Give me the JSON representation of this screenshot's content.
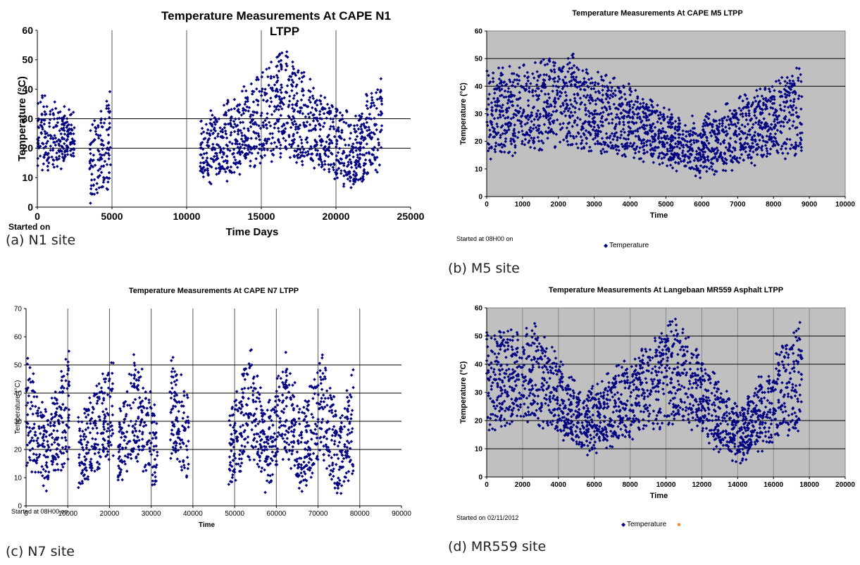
{
  "colors": {
    "series": "#000080",
    "plot_bg": "#c0c0c0",
    "grid": "#000000",
    "vgrid_light": "#8a8a8a",
    "legend_orange": "#f08a24"
  },
  "chart_data": [
    {
      "id": "n1",
      "type": "scatter",
      "title": "Temperature Measurements At CAPE N1 LTPP",
      "title_line1": "Temperature Measurements At CAPE N1",
      "title_line2": "LTPP",
      "xlabel": "Time Days",
      "ylabel": "Temperature (°C)",
      "note": "Started on",
      "caption": "(a) N1 site",
      "xlim": [
        0,
        25000
      ],
      "ylim": [
        0,
        60
      ],
      "xticks": [
        "0",
        "5000",
        "10000",
        "15000",
        "20000",
        "25000"
      ],
      "yticks": [
        "0",
        "10",
        "20",
        "30",
        "40",
        "50",
        "60"
      ],
      "hgrid": [
        20,
        30
      ],
      "vgrid": [
        5000,
        10000,
        15000,
        20000
      ],
      "grid_bg": false,
      "segments": [
        {
          "x0": 0,
          "x1": 2500,
          "lo": [
            14,
            17
          ],
          "hi": [
            38,
            28
          ]
        },
        {
          "x0": 3500,
          "x1": 4900,
          "lo": [
            3,
            9
          ],
          "hi": [
            22,
            41
          ]
        },
        {
          "x0": 10900,
          "x1": 13000,
          "lo": [
            10,
            12
          ],
          "hi": [
            27,
            33
          ]
        },
        {
          "x0": 13000,
          "x1": 16500,
          "lo": [
            12,
            20
          ],
          "hi": [
            33,
            50
          ]
        },
        {
          "x0": 16500,
          "x1": 19500,
          "lo": [
            20,
            13
          ],
          "hi": [
            50,
            33
          ]
        },
        {
          "x0": 19500,
          "x1": 21500,
          "lo": [
            12,
            8
          ],
          "hi": [
            33,
            27
          ]
        },
        {
          "x0": 21500,
          "x1": 23100,
          "lo": [
            9,
            15
          ],
          "hi": [
            30,
            43
          ]
        }
      ]
    },
    {
      "id": "m5",
      "type": "scatter",
      "title": "Temperature Measurements At CAPE M5 LTPP",
      "xlabel": "Time",
      "ylabel": "Temperature (°C)",
      "note": "Started at 08H00 on",
      "legend": [
        {
          "name": "Temperature",
          "marker": "◆",
          "color": "#000080"
        }
      ],
      "caption": "(b) M5 site",
      "xlim": [
        0,
        10000
      ],
      "ylim": [
        0,
        60
      ],
      "xticks": [
        "0",
        "1000",
        "2000",
        "3000",
        "4000",
        "5000",
        "6000",
        "7000",
        "8000",
        "9000",
        "10000"
      ],
      "yticks": [
        "0",
        "10",
        "20",
        "30",
        "40",
        "50",
        "60"
      ],
      "hgrid": [
        40,
        50
      ],
      "vgrid": [],
      "grid_bg": true,
      "segments": [
        {
          "x0": 0,
          "x1": 2500,
          "lo": [
            16,
            22
          ],
          "hi": [
            42,
            48
          ]
        },
        {
          "x0": 2500,
          "x1": 4000,
          "lo": [
            20,
            17
          ],
          "hi": [
            44,
            37
          ]
        },
        {
          "x0": 4000,
          "x1": 6000,
          "lo": [
            17,
            9
          ],
          "hi": [
            36,
            24
          ]
        },
        {
          "x0": 6000,
          "x1": 8800,
          "lo": [
            10,
            18
          ],
          "hi": [
            25,
            44
          ]
        }
      ]
    },
    {
      "id": "n7",
      "type": "scatter",
      "title": "Temperature Measurements At CAPE N7 LTPP",
      "xlabel": "Time",
      "ylabel": "Temperature (°C)",
      "note": "Started at 08H00 on",
      "caption": "(c) N7 site",
      "xlim": [
        0,
        90000
      ],
      "ylim": [
        0,
        70
      ],
      "xticks": [
        "0",
        "10000",
        "20000",
        "30000",
        "40000",
        "50000",
        "60000",
        "70000",
        "80000",
        "90000"
      ],
      "yticks": [
        "0",
        "10",
        "20",
        "30",
        "40",
        "50",
        "60",
        "70"
      ],
      "hgrid": [
        20,
        30,
        40,
        50
      ],
      "vgrid": [
        10000,
        20000,
        30000,
        40000,
        50000,
        60000,
        70000,
        80000
      ],
      "grid_bg": false,
      "segments": [
        {
          "x0": 0,
          "x1": 5000,
          "lo": [
            17,
            8
          ],
          "hi": [
            50,
            30
          ]
        },
        {
          "x0": 5000,
          "x1": 10500,
          "lo": [
            8,
            20
          ],
          "hi": [
            30,
            53
          ]
        },
        {
          "x0": 12500,
          "x1": 17000,
          "lo": [
            6,
            12
          ],
          "hi": [
            28,
            40
          ]
        },
        {
          "x0": 17000,
          "x1": 21000,
          "lo": [
            12,
            20
          ],
          "hi": [
            40,
            51
          ]
        },
        {
          "x0": 22000,
          "x1": 26000,
          "lo": [
            7,
            20
          ],
          "hi": [
            28,
            52
          ]
        },
        {
          "x0": 26000,
          "x1": 31500,
          "lo": [
            20,
            7
          ],
          "hi": [
            52,
            30
          ]
        },
        {
          "x0": 34500,
          "x1": 39000,
          "lo": [
            20,
            9
          ],
          "hi": [
            54,
            35
          ]
        },
        {
          "x0": 48500,
          "x1": 54000,
          "lo": [
            7,
            20
          ],
          "hi": [
            30,
            52
          ]
        },
        {
          "x0": 54000,
          "x1": 57500,
          "lo": [
            20,
            7
          ],
          "hi": [
            52,
            30
          ]
        },
        {
          "x0": 57500,
          "x1": 62500,
          "lo": [
            7,
            20
          ],
          "hi": [
            30,
            52
          ]
        },
        {
          "x0": 62500,
          "x1": 66000,
          "lo": [
            20,
            7
          ],
          "hi": [
            52,
            30
          ]
        },
        {
          "x0": 66000,
          "x1": 71000,
          "lo": [
            7,
            20
          ],
          "hi": [
            30,
            51
          ]
        },
        {
          "x0": 71000,
          "x1": 75000,
          "lo": [
            20,
            5
          ],
          "hi": [
            51,
            28
          ]
        },
        {
          "x0": 75000,
          "x1": 78500,
          "lo": [
            5,
            15
          ],
          "hi": [
            28,
            45
          ]
        }
      ]
    },
    {
      "id": "mr559",
      "type": "scatter",
      "title": "Temperature Measurements At Langebaan MR559 Asphalt LTPP",
      "xlabel": "Time",
      "ylabel": "Temperature (°C)",
      "note": "Started on 02/11/2012",
      "legend": [
        {
          "name": "Temperature",
          "marker": "◆",
          "color": "#000080"
        },
        {
          "name": "",
          "marker": "■",
          "color": "#f08a24"
        }
      ],
      "caption": "(d) MR559 site",
      "xlim": [
        0,
        20000
      ],
      "ylim": [
        0,
        60
      ],
      "xticks": [
        "0",
        "2000",
        "4000",
        "6000",
        "8000",
        "10000",
        "12000",
        "14000",
        "16000",
        "18000",
        "20000"
      ],
      "yticks": [
        "0",
        "10",
        "20",
        "30",
        "40",
        "50",
        "60"
      ],
      "hgrid": [
        10,
        20,
        40,
        50
      ],
      "vgrid": [
        2000,
        4000,
        6000,
        8000,
        10000,
        12000,
        14000,
        16000,
        18000
      ],
      "grid_bg": true,
      "segments": [
        {
          "x0": 0,
          "x1": 2500,
          "lo": [
            19,
            22
          ],
          "hi": [
            48,
            52
          ]
        },
        {
          "x0": 2500,
          "x1": 5500,
          "lo": [
            22,
            10
          ],
          "hi": [
            52,
            26
          ]
        },
        {
          "x0": 5500,
          "x1": 10500,
          "lo": [
            10,
            22
          ],
          "hi": [
            26,
            53
          ]
        },
        {
          "x0": 10500,
          "x1": 14000,
          "lo": [
            22,
            7
          ],
          "hi": [
            53,
            22
          ]
        },
        {
          "x0": 14000,
          "x1": 17600,
          "lo": [
            7,
            20
          ],
          "hi": [
            22,
            52
          ]
        }
      ]
    }
  ]
}
